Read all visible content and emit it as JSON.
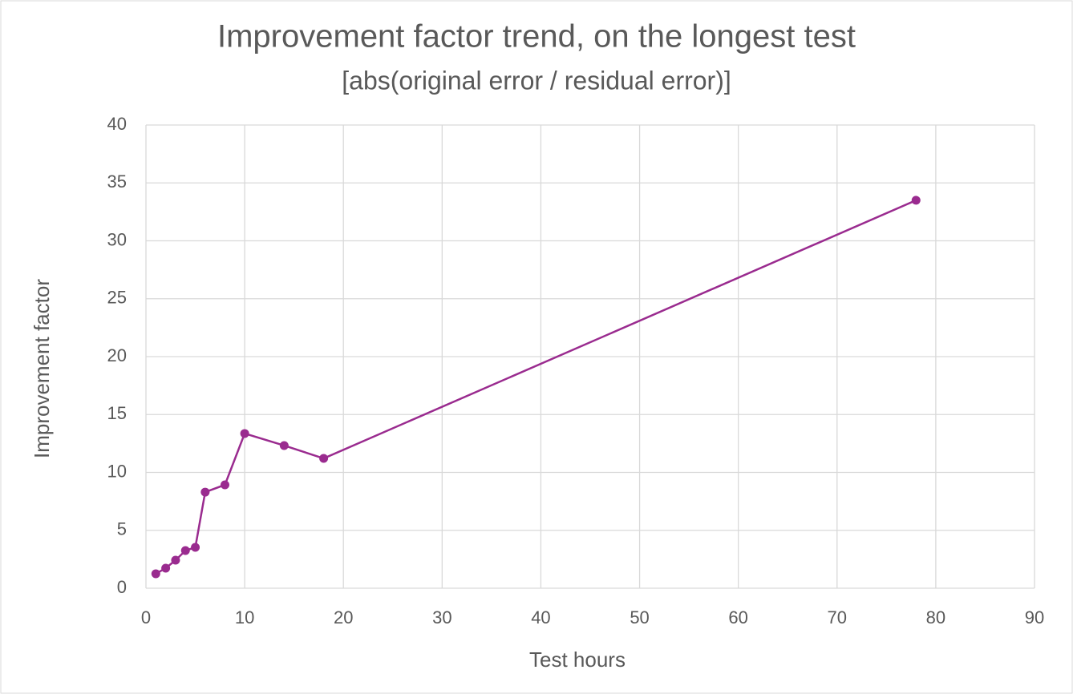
{
  "chart_data": {
    "type": "line",
    "title": "Improvement factor trend, on the longest test",
    "subtitle": "[abs(original error / residual error)]",
    "x_label": "Test hours",
    "y_label": "Improvement factor",
    "x": [
      1,
      2,
      3,
      4,
      5,
      6,
      8,
      10,
      14,
      18,
      78
    ],
    "values": [
      1.25,
      1.73,
      2.42,
      3.25,
      3.53,
      8.3,
      8.93,
      13.36,
      12.32,
      11.21,
      33.5
    ],
    "color": "#9a2b8f",
    "xlim": [
      0,
      90
    ],
    "xticks": [
      0,
      10,
      20,
      30,
      40,
      50,
      60,
      70,
      80,
      90
    ],
    "ylim": [
      0,
      40
    ],
    "yticks": [
      0,
      5,
      10,
      15,
      20,
      25,
      30,
      35,
      40
    ],
    "grid": true
  }
}
